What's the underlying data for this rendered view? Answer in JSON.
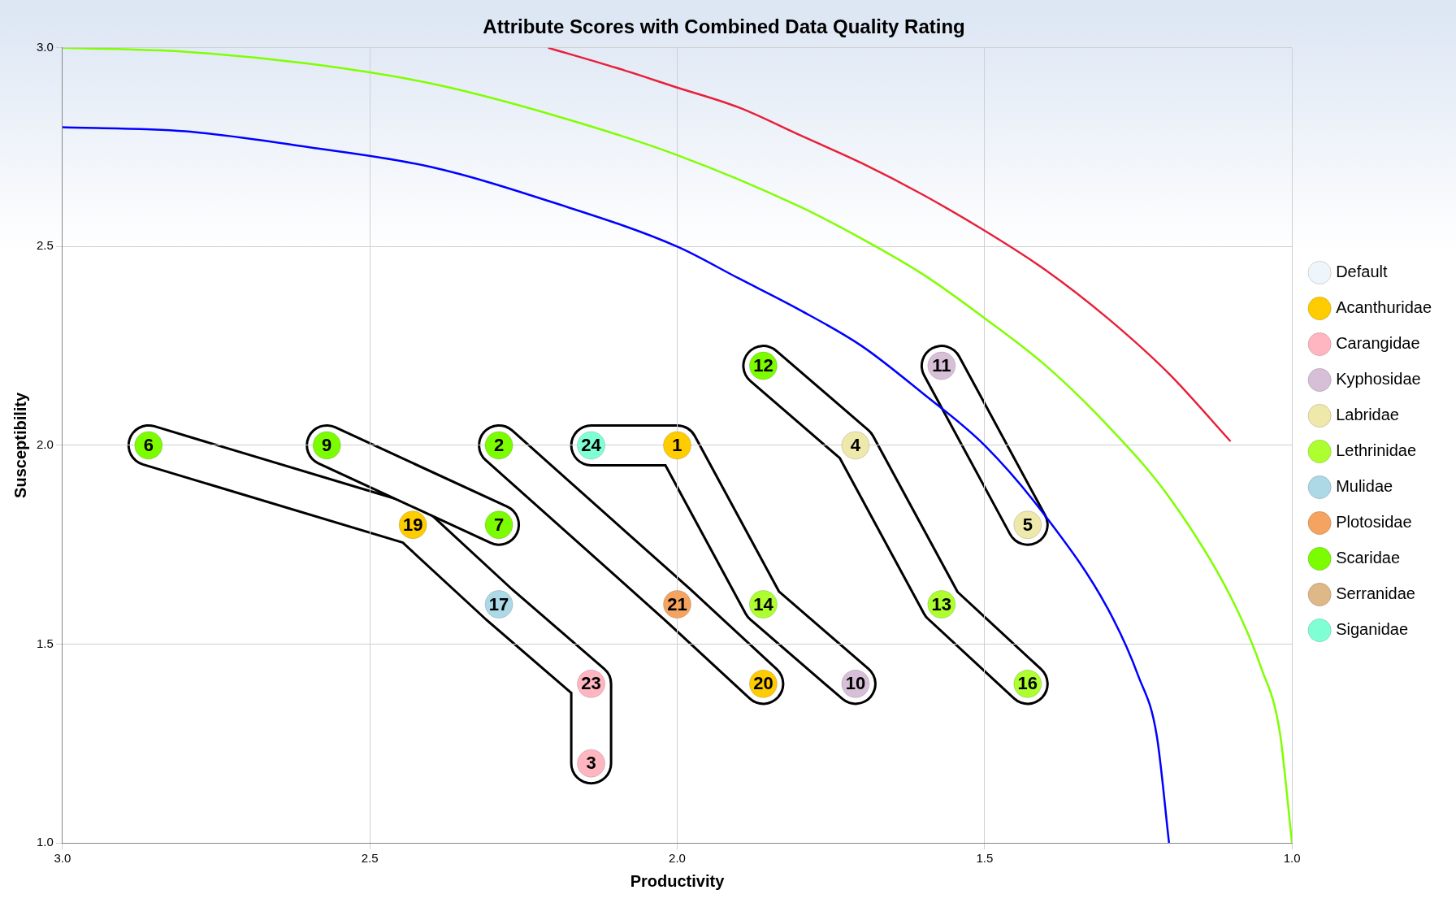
{
  "chart_data": {
    "type": "scatter",
    "title": "Attribute Scores with Combined Data Quality Rating",
    "xlabel": "Productivity",
    "ylabel": "Susceptibility",
    "xlim": [
      3,
      1
    ],
    "ylim": [
      1,
      3
    ],
    "xticks": [
      {
        "value": 3,
        "label": "3.0"
      },
      {
        "value": 2.5,
        "label": "2.5"
      },
      {
        "value": 2,
        "label": "2.0"
      },
      {
        "value": 1.5,
        "label": "1.5"
      },
      {
        "value": 1,
        "label": "1.0"
      }
    ],
    "yticks": [
      {
        "value": 1,
        "label": "1.0"
      },
      {
        "value": 1.5,
        "label": "1.5"
      },
      {
        "value": 2,
        "label": "2.0"
      },
      {
        "value": 2.5,
        "label": "2.5"
      },
      {
        "value": 3,
        "label": "3.0"
      }
    ],
    "grid": true,
    "legend": "right",
    "line_style": "solid",
    "series": [
      {
        "name": "Default",
        "color": "#eef6fb",
        "marker": "circle"
      },
      {
        "name": "Acanthuridae",
        "color": "#ffcc00",
        "marker": "circle",
        "x": [
          2.0,
          2.43,
          1.86
        ],
        "values": [
          2.0,
          1.8,
          1.4
        ]
      },
      {
        "name": "Carangidae",
        "color": "#ffb6c1",
        "marker": "circle",
        "x": [
          2.14,
          2.14
        ],
        "values": [
          1.2,
          1.4
        ]
      },
      {
        "name": "Kyphosidae",
        "color": "#d8bfd8",
        "marker": "circle",
        "x": [
          1.71,
          1.57
        ],
        "values": [
          1.4,
          2.2
        ]
      },
      {
        "name": "Labridae",
        "color": "#eee8aa",
        "marker": "circle",
        "x": [
          1.71,
          1.43
        ],
        "values": [
          2.0,
          1.8
        ]
      },
      {
        "name": "Lethrinidae",
        "color": "#adff2f",
        "marker": "circle",
        "x": [
          1.57,
          1.86,
          1.43
        ],
        "values": [
          1.6,
          1.6,
          1.4
        ]
      },
      {
        "name": "Mulidae",
        "color": "#add8e6",
        "marker": "circle",
        "x": [
          2.29
        ],
        "values": [
          1.6
        ]
      },
      {
        "name": "Plotosidae",
        "color": "#f4a460",
        "marker": "circle",
        "x": [
          2.0
        ],
        "values": [
          1.6
        ]
      },
      {
        "name": "Scaridae",
        "color": "#7cfc00",
        "marker": "circle",
        "x": [
          2.29,
          2.86,
          2.29,
          2.57,
          1.86
        ],
        "values": [
          2.0,
          2.0,
          1.8,
          2.0,
          2.2
        ]
      },
      {
        "name": "Serranidae",
        "color": "#deb887",
        "marker": "circle"
      },
      {
        "name": "Siganidae",
        "color": "#7fffd4",
        "marker": "circle",
        "x": [
          2.14
        ],
        "values": [
          2.0
        ]
      },
      {
        "type": "line",
        "color": "#e8203a",
        "marker": "none",
        "x": [
          2.21,
          2.1,
          2.0,
          1.9,
          1.8,
          1.7,
          1.6,
          1.5,
          1.4,
          1.3,
          1.2,
          1.1
        ],
        "values": [
          3.0,
          2.95,
          2.9,
          2.85,
          2.78,
          2.71,
          2.63,
          2.54,
          2.44,
          2.32,
          2.18,
          2.01
        ]
      },
      {
        "type": "line",
        "color": "#7fff00",
        "marker": "none",
        "x": [
          3,
          2.8,
          2.6,
          2.4,
          2.2,
          2.0,
          1.8,
          1.7,
          1.6,
          1.5,
          1.4,
          1.3,
          1.2,
          1.1,
          1.05,
          1.02,
          1.0
        ],
        "values": [
          3.0,
          2.99,
          2.96,
          2.91,
          2.83,
          2.73,
          2.6,
          2.52,
          2.43,
          2.32,
          2.2,
          2.05,
          1.87,
          1.62,
          1.44,
          1.28,
          1.0
        ]
      },
      {
        "type": "line",
        "color": "#0000ff",
        "marker": "none",
        "x": [
          3,
          2.8,
          2.6,
          2.4,
          2.2,
          2.0,
          1.9,
          1.8,
          1.7,
          1.6,
          1.5,
          1.4,
          1.3,
          1.25,
          1.22,
          1.2
        ],
        "values": [
          2.8,
          2.79,
          2.75,
          2.7,
          2.61,
          2.5,
          2.42,
          2.34,
          2.25,
          2.13,
          2.0,
          1.82,
          1.59,
          1.42,
          1.27,
          1.0
        ]
      }
    ],
    "annotations": [
      {
        "text": "1",
        "x": 2.0,
        "y": 2.0
      },
      {
        "text": "2",
        "x": 2.29,
        "y": 2.0
      },
      {
        "text": "3",
        "x": 2.14,
        "y": 1.2
      },
      {
        "text": "4",
        "x": 1.71,
        "y": 2.0
      },
      {
        "text": "5",
        "x": 1.43,
        "y": 1.8
      },
      {
        "text": "6",
        "x": 2.86,
        "y": 2.0
      },
      {
        "text": "7",
        "x": 2.29,
        "y": 1.8
      },
      {
        "text": "9",
        "x": 2.57,
        "y": 2.0
      },
      {
        "text": "10",
        "x": 1.71,
        "y": 1.4
      },
      {
        "text": "11",
        "x": 1.57,
        "y": 2.2
      },
      {
        "text": "12",
        "x": 1.86,
        "y": 2.2
      },
      {
        "text": "13",
        "x": 1.57,
        "y": 1.6
      },
      {
        "text": "14",
        "x": 1.86,
        "y": 1.6
      },
      {
        "text": "16",
        "x": 1.43,
        "y": 1.4
      },
      {
        "text": "17",
        "x": 2.29,
        "y": 1.6
      },
      {
        "text": "19",
        "x": 2.43,
        "y": 1.8
      },
      {
        "text": "20",
        "x": 1.86,
        "y": 1.4
      },
      {
        "text": "21",
        "x": 2.0,
        "y": 1.6
      },
      {
        "text": "23",
        "x": 2.14,
        "y": 1.4
      },
      {
        "text": "24",
        "x": 2.14,
        "y": 2.0
      }
    ]
  }
}
